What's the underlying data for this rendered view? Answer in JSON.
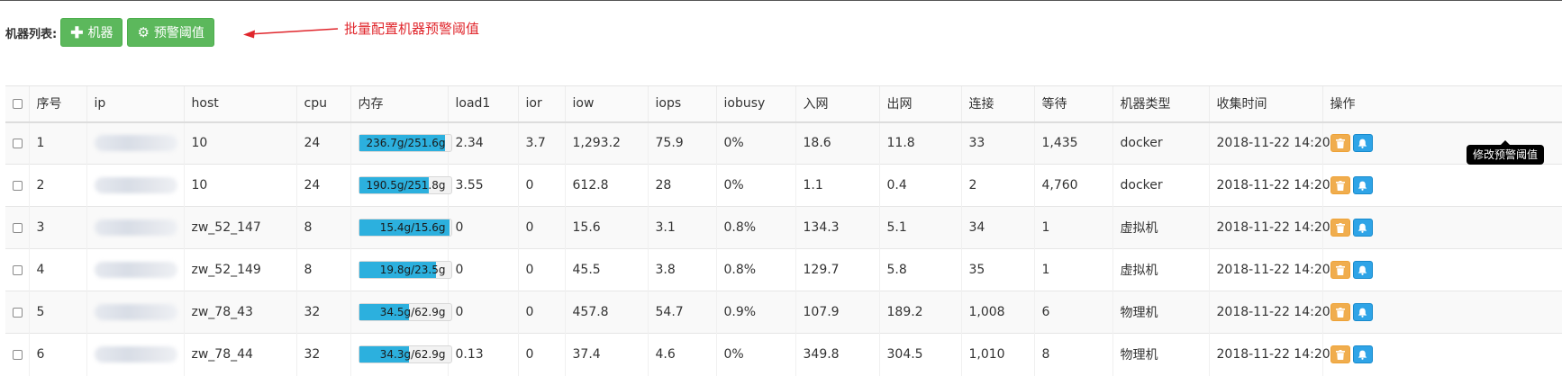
{
  "toolbar": {
    "label": "机器列表:",
    "add_machine_label": "机器",
    "batch_threshold_label": "预警阈值"
  },
  "annotation": {
    "text": "批量配置机器预警阈值",
    "color": "#e0262c"
  },
  "table": {
    "headers": [
      "序号",
      "ip",
      "host",
      "cpu",
      "内存",
      "load1",
      "ior",
      "iow",
      "iops",
      "iobusy",
      "入网",
      "出网",
      "连接",
      "等待",
      "机器类型",
      "收集时间",
      "操作"
    ],
    "rows": [
      {
        "seq": "1",
        "host": "10",
        "cpu": "24",
        "mem": "236.7g/251.6g",
        "mem_used_fraction": 0.94,
        "load1": "2.34",
        "ior": "3.7",
        "iow": "1,293.2",
        "iops": "75.9",
        "iobusy": "0%",
        "net_in": "18.6",
        "net_out": "11.8",
        "conn": "33",
        "wait": "1,435",
        "type": "docker",
        "time": "2018-11-22 14:20"
      },
      {
        "seq": "2",
        "host": "10",
        "cpu": "24",
        "mem": "190.5g/251.8g",
        "mem_used_fraction": 0.757,
        "load1": "3.55",
        "ior": "0",
        "iow": "612.8",
        "iops": "28",
        "iobusy": "0%",
        "net_in": "1.1",
        "net_out": "0.4",
        "conn": "2",
        "wait": "4,760",
        "type": "docker",
        "time": "2018-11-22 14:20"
      },
      {
        "seq": "3",
        "host": "zw_52_147",
        "cpu": "8",
        "mem": "15.4g/15.6g",
        "mem_used_fraction": 0.987,
        "load1": "0",
        "ior": "0",
        "iow": "15.6",
        "iops": "3.1",
        "iobusy": "0.8%",
        "net_in": "134.3",
        "net_out": "5.1",
        "conn": "34",
        "wait": "1",
        "type": "虚拟机",
        "time": "2018-11-22 14:20"
      },
      {
        "seq": "4",
        "host": "zw_52_149",
        "cpu": "8",
        "mem": "19.8g/23.5g",
        "mem_used_fraction": 0.843,
        "load1": "0",
        "ior": "0",
        "iow": "45.5",
        "iops": "3.8",
        "iobusy": "0.8%",
        "net_in": "129.7",
        "net_out": "5.8",
        "conn": "35",
        "wait": "1",
        "type": "虚拟机",
        "time": "2018-11-22 14:20"
      },
      {
        "seq": "5",
        "host": "zw_78_43",
        "cpu": "32",
        "mem": "34.5g/62.9g",
        "mem_used_fraction": 0.548,
        "load1": "0",
        "ior": "0",
        "iow": "457.8",
        "iops": "54.7",
        "iobusy": "0.9%",
        "net_in": "107.9",
        "net_out": "189.2",
        "conn": "1,008",
        "wait": "6",
        "type": "物理机",
        "time": "2018-11-22 14:20"
      },
      {
        "seq": "6",
        "host": "zw_78_44",
        "cpu": "32",
        "mem": "34.3g/62.9g",
        "mem_used_fraction": 0.545,
        "load1": "0.13",
        "ior": "0",
        "iow": "37.4",
        "iops": "4.6",
        "iobusy": "0%",
        "net_in": "349.8",
        "net_out": "304.5",
        "conn": "1,010",
        "wait": "8",
        "type": "物理机",
        "time": "2018-11-22 14:20"
      }
    ]
  },
  "tooltip": {
    "text": "修改预警阈值"
  },
  "colors": {
    "success_button": "#5cb85c",
    "memory_bar": "#2cb0de",
    "delete_button": "#f0ad4e",
    "alert_button": "#2fa4e7"
  },
  "icons": {
    "add_button": "plus-icon",
    "threshold_button": "gear-icon",
    "delete_button": "trash-icon",
    "alert_button": "bell-icon",
    "annotation": "arrow-left-icon"
  }
}
